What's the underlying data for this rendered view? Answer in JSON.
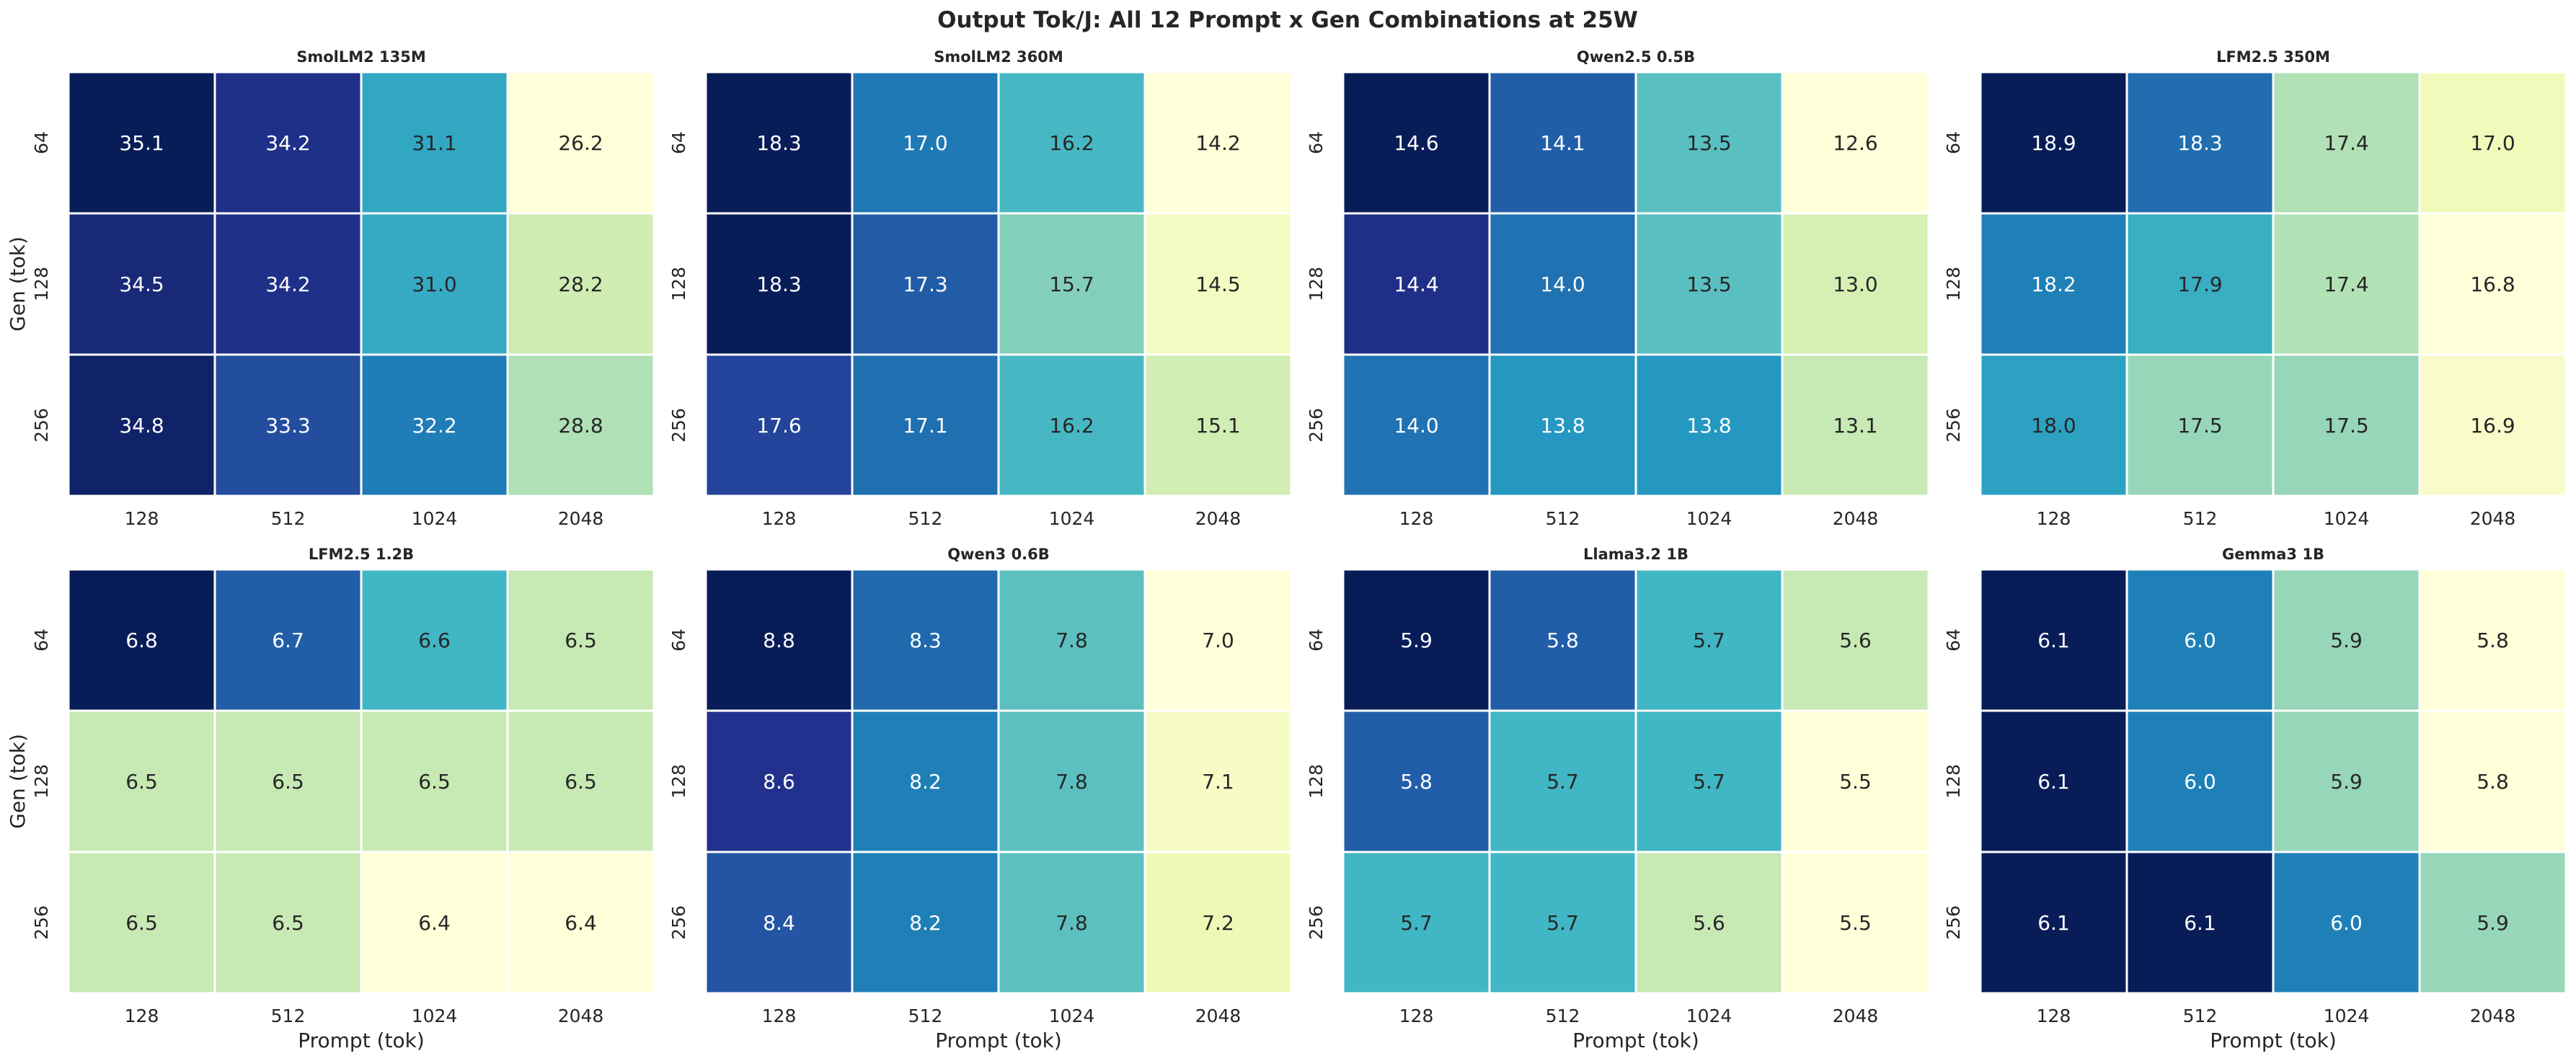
{
  "figure": {
    "title": "Output Tok/J: All 12 Prompt x Gen Combinations at 25W",
    "xlabel": "Prompt (tok)",
    "ylabel": "Gen (tok)",
    "colormap": "YlGnBu",
    "colormap_stops": [
      "#ffffd9",
      "#edf8b1",
      "#c7e9b4",
      "#7fcdbb",
      "#41b6c4",
      "#1d91c0",
      "#225ea8",
      "#253494",
      "#081d58"
    ],
    "cell_border_color": "#ffffff",
    "colorbar": false
  },
  "chart_data": [
    {
      "type": "heatmap",
      "title": "SmolLM2 135M",
      "x": [
        "128",
        "512",
        "1024",
        "2048"
      ],
      "y": [
        "64",
        "128",
        "256"
      ],
      "values": [
        [
          35.1,
          34.2,
          31.1,
          26.2
        ],
        [
          34.5,
          34.2,
          31.0,
          28.2
        ],
        [
          34.8,
          33.3,
          32.2,
          28.8
        ]
      ]
    },
    {
      "type": "heatmap",
      "title": "SmolLM2 360M",
      "x": [
        "128",
        "512",
        "1024",
        "2048"
      ],
      "y": [
        "64",
        "128",
        "256"
      ],
      "values": [
        [
          18.3,
          17.0,
          16.2,
          14.2
        ],
        [
          18.3,
          17.3,
          15.7,
          14.5
        ],
        [
          17.6,
          17.1,
          16.2,
          15.1
        ]
      ]
    },
    {
      "type": "heatmap",
      "title": "Qwen2.5 0.5B",
      "x": [
        "128",
        "512",
        "1024",
        "2048"
      ],
      "y": [
        "64",
        "128",
        "256"
      ],
      "values": [
        [
          14.6,
          14.1,
          13.5,
          12.6
        ],
        [
          14.4,
          14.0,
          13.5,
          13.0
        ],
        [
          14.0,
          13.8,
          13.8,
          13.1
        ]
      ]
    },
    {
      "type": "heatmap",
      "title": "LFM2.5 350M",
      "x": [
        "128",
        "512",
        "1024",
        "2048"
      ],
      "y": [
        "64",
        "128",
        "256"
      ],
      "values": [
        [
          18.9,
          18.3,
          17.4,
          17.0
        ],
        [
          18.2,
          17.9,
          17.4,
          16.8
        ],
        [
          18.0,
          17.5,
          17.5,
          16.9
        ]
      ]
    },
    {
      "type": "heatmap",
      "title": "LFM2.5 1.2B",
      "x": [
        "128",
        "512",
        "1024",
        "2048"
      ],
      "y": [
        "64",
        "128",
        "256"
      ],
      "values": [
        [
          6.8,
          6.7,
          6.6,
          6.5
        ],
        [
          6.5,
          6.5,
          6.5,
          6.5
        ],
        [
          6.5,
          6.5,
          6.4,
          6.4
        ]
      ]
    },
    {
      "type": "heatmap",
      "title": "Qwen3 0.6B",
      "x": [
        "128",
        "512",
        "1024",
        "2048"
      ],
      "y": [
        "64",
        "128",
        "256"
      ],
      "values": [
        [
          8.8,
          8.3,
          7.8,
          7.0
        ],
        [
          8.6,
          8.2,
          7.8,
          7.1
        ],
        [
          8.4,
          8.2,
          7.8,
          7.2
        ]
      ]
    },
    {
      "type": "heatmap",
      "title": "Llama3.2 1B",
      "x": [
        "128",
        "512",
        "1024",
        "2048"
      ],
      "y": [
        "64",
        "128",
        "256"
      ],
      "values": [
        [
          5.9,
          5.8,
          5.7,
          5.6
        ],
        [
          5.8,
          5.7,
          5.7,
          5.5
        ],
        [
          5.7,
          5.7,
          5.6,
          5.5
        ]
      ]
    },
    {
      "type": "heatmap",
      "title": "Gemma3 1B",
      "x": [
        "128",
        "512",
        "1024",
        "2048"
      ],
      "y": [
        "64",
        "128",
        "256"
      ],
      "values": [
        [
          6.1,
          6.0,
          5.9,
          5.8
        ],
        [
          6.1,
          6.0,
          5.9,
          5.8
        ],
        [
          6.1,
          6.1,
          6.0,
          5.9
        ]
      ]
    }
  ]
}
